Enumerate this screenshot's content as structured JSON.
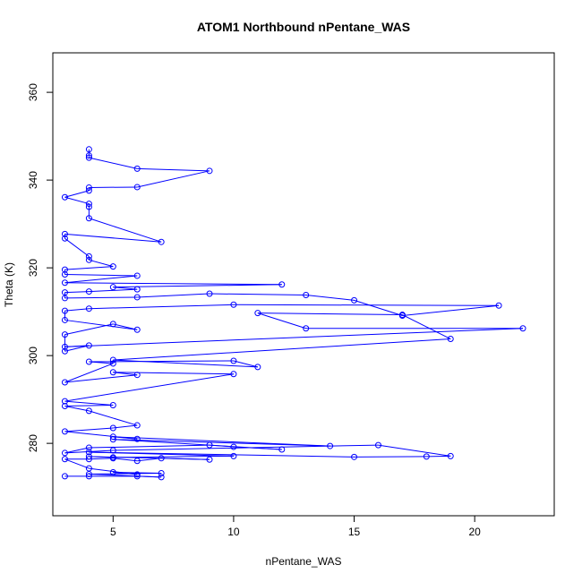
{
  "chart_data": {
    "type": "scatter",
    "title": "ATOM1 Northbound nPentane_WAS",
    "xlabel": "nPentane_WAS",
    "ylabel": "Theta (K)",
    "xlim": [
      2.5,
      23.3
    ],
    "ylim": [
      263.5,
      369
    ],
    "xticks": [
      5,
      10,
      15,
      20
    ],
    "yticks": [
      280,
      300,
      320,
      340,
      360
    ],
    "grid": false,
    "connect_points": true,
    "colors": {
      "series": "#0000ff",
      "axis": "#000000",
      "background": "#ffffff"
    },
    "series": [
      {
        "style": "line+points",
        "points": [
          [
            3,
            272.5
          ],
          [
            4,
            272.5
          ],
          [
            6,
            272.5
          ],
          [
            7,
            272.3
          ],
          [
            4,
            273.0
          ],
          [
            7,
            273.2
          ],
          [
            5,
            273.4
          ],
          [
            6,
            272.9
          ],
          [
            4,
            274.3
          ],
          [
            3,
            276.4
          ],
          [
            4,
            276.4
          ],
          [
            5,
            276.6
          ],
          [
            6,
            276.0
          ],
          [
            7,
            276.6
          ],
          [
            9,
            276.3
          ],
          [
            4,
            277.0
          ],
          [
            5,
            276.8
          ],
          [
            10,
            277.1
          ],
          [
            4,
            278.0
          ],
          [
            15,
            276.9
          ],
          [
            18,
            277.0
          ],
          [
            19,
            277.1
          ],
          [
            16,
            279.6
          ],
          [
            5,
            278.4
          ],
          [
            3,
            277.8
          ],
          [
            4,
            279.0
          ],
          [
            9,
            279.6
          ],
          [
            10,
            279.2
          ],
          [
            12,
            278.6
          ],
          [
            5,
            280.9
          ],
          [
            14,
            279.4
          ],
          [
            5,
            281.5
          ],
          [
            6,
            281.0
          ],
          [
            3,
            282.7
          ],
          [
            5,
            283.5
          ],
          [
            6,
            284.1
          ],
          [
            4,
            287.4
          ],
          [
            3,
            288.5
          ],
          [
            5,
            288.7
          ],
          [
            3,
            289.6
          ],
          [
            10,
            295.8
          ],
          [
            5,
            296.2
          ],
          [
            6,
            295.6
          ],
          [
            3,
            293.9
          ],
          [
            5,
            298.2
          ],
          [
            4,
            298.6
          ],
          [
            10,
            298.8
          ],
          [
            11,
            297.4
          ],
          [
            5,
            299.0
          ],
          [
            19,
            303.8
          ],
          [
            17,
            309.3
          ],
          [
            11,
            309.7
          ],
          [
            13,
            306.2
          ],
          [
            22,
            306.2
          ],
          [
            3,
            302.0
          ],
          [
            4,
            302.3
          ],
          [
            3,
            301.0
          ],
          [
            3,
            304.8
          ],
          [
            5,
            307.2
          ],
          [
            6,
            305.9
          ],
          [
            3,
            308.1
          ],
          [
            3,
            310.2
          ],
          [
            4,
            310.7
          ],
          [
            10,
            311.6
          ],
          [
            21,
            311.4
          ],
          [
            17,
            309.1
          ],
          [
            15,
            312.6
          ],
          [
            13,
            313.8
          ],
          [
            9,
            314.1
          ],
          [
            6,
            313.3
          ],
          [
            3,
            313.1
          ],
          [
            3,
            314.4
          ],
          [
            4,
            314.6
          ],
          [
            6,
            315.1
          ],
          [
            5,
            315.6
          ],
          [
            12,
            316.2
          ],
          [
            3,
            316.6
          ],
          [
            6,
            318.2
          ],
          [
            3,
            318.5
          ],
          [
            3,
            319.6
          ],
          [
            5,
            320.3
          ],
          [
            4,
            321.8
          ],
          [
            4,
            322.6
          ],
          [
            3,
            326.7
          ],
          [
            3,
            327.7
          ],
          [
            7,
            325.9
          ],
          [
            4,
            331.3
          ],
          [
            4,
            333.9
          ],
          [
            4,
            334.6
          ],
          [
            3,
            336.1
          ],
          [
            4,
            337.6
          ],
          [
            4,
            338.3
          ],
          [
            6,
            338.4
          ],
          [
            9,
            342.1
          ],
          [
            6,
            342.6
          ],
          [
            4,
            345.1
          ],
          [
            4,
            345.6
          ],
          [
            4,
            347.0
          ]
        ]
      }
    ]
  }
}
